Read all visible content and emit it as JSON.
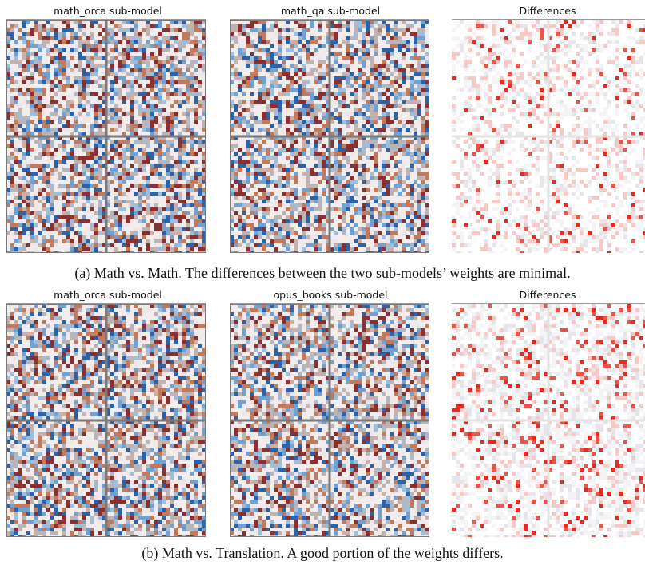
{
  "row_a": {
    "titles": [
      "math_orca sub-model",
      "math_qa sub-model",
      "Differences"
    ],
    "caption": "(a) Math vs. Math. The differences between the two sub-models’ weights are minimal."
  },
  "row_b": {
    "titles": [
      "math_orca sub-model",
      "opus_books sub-model",
      "Differences"
    ],
    "caption": "(b) Math vs. Translation. A good portion of the weights differs."
  },
  "colors": {
    "weight_palette": [
      "#f3ecec",
      "#efe7e7",
      "#b9b4b6",
      "#8b3030",
      "#c27a5d",
      "#2e62a6",
      "#6fa2d2",
      "#9fbedc",
      "#c9b1a9"
    ],
    "diff_palette": [
      "#ffffff",
      "#f4f4f6",
      "#e6e6ea",
      "#f6c9c6",
      "#e8554a",
      "#e32c22"
    ],
    "grid_line": "#7a7a7a",
    "diff_grid_line": "#e3e3e3"
  }
}
